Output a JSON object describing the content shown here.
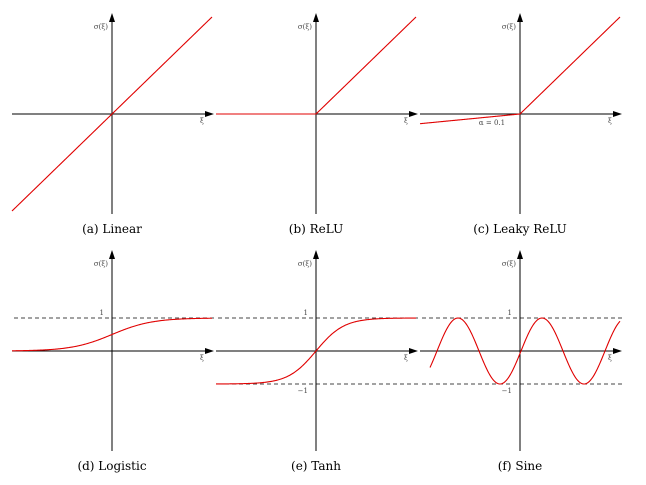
{
  "chart_data": [
    {
      "type": "line",
      "function": "linear",
      "caption": "(a) Linear",
      "ylabel": "σ(ξ)",
      "xlabel": "ξ",
      "xlim": [
        -3.2,
        3.2
      ],
      "ylim": [
        -3.2,
        3.2
      ],
      "ref_lines": [],
      "annotation": ""
    },
    {
      "type": "line",
      "function": "relu",
      "caption": "(b) ReLU",
      "ylabel": "σ(ξ)",
      "xlabel": "ξ",
      "xlim": [
        -3.2,
        3.2
      ],
      "ylim": [
        -3.2,
        3.2
      ],
      "ref_lines": [],
      "annotation": ""
    },
    {
      "type": "line",
      "function": "leaky_relu",
      "alpha": 0.1,
      "caption": "(c) Leaky ReLU",
      "ylabel": "σ(ξ)",
      "xlabel": "ξ",
      "xlim": [
        -3.2,
        3.2
      ],
      "ylim": [
        -3.2,
        3.2
      ],
      "ref_lines": [],
      "annotation": "α = 0.1"
    },
    {
      "type": "line",
      "function": "logistic",
      "caption": "(d) Logistic",
      "ylabel": "σ(ξ)",
      "xlabel": "ξ",
      "xlim": [
        -6.5,
        6.5
      ],
      "ylim": [
        -6.5,
        6.5
      ],
      "ref_lines": [
        {
          "y": 1,
          "label": "1"
        }
      ],
      "annotation": ""
    },
    {
      "type": "line",
      "function": "tanh",
      "caption": "(e) Tanh",
      "ylabel": "σ(ξ)",
      "xlabel": "ξ",
      "xlim": [
        -3.2,
        3.2
      ],
      "ylim": [
        -3.2,
        3.2
      ],
      "ref_lines": [
        {
          "y": 1,
          "label": "1"
        },
        {
          "y": -1,
          "label": "−1"
        }
      ],
      "annotation": ""
    },
    {
      "type": "line",
      "function": "sine",
      "caption": "(f) Sine",
      "ylabel": "σ(ξ)",
      "xlabel": "ξ",
      "xlim": [
        -3.2,
        3.2
      ],
      "ylim": [
        -3.2,
        3.2
      ],
      "ref_lines": [
        {
          "y": 1,
          "label": "1"
        },
        {
          "y": -1,
          "label": "−1"
        }
      ],
      "annotation": ""
    }
  ],
  "colors": {
    "curve": "#e00000",
    "axis": "#000000",
    "dashed": "#444444"
  }
}
